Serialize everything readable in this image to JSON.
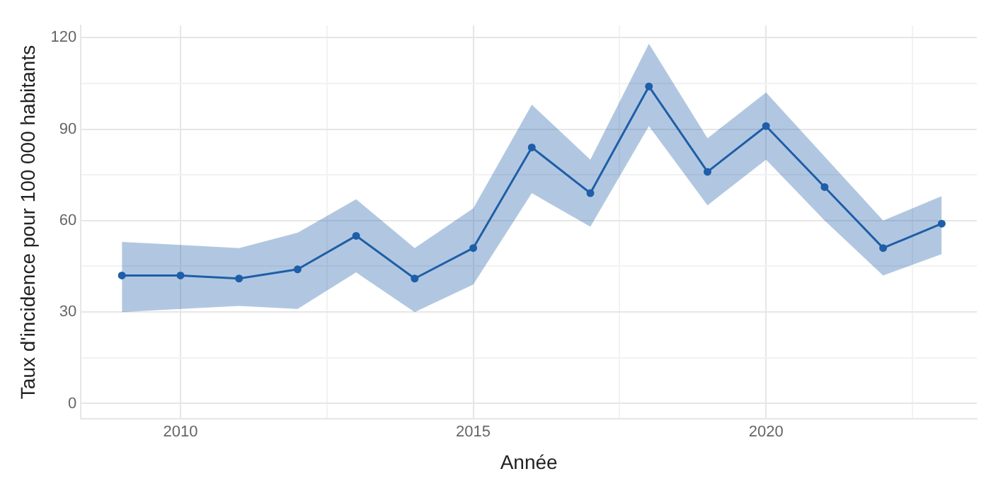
{
  "chart_data": {
    "type": "line",
    "xlabel": "Année",
    "ylabel": "Taux d'incidence pour 100 000 habitants",
    "x": [
      2009,
      2010,
      2011,
      2012,
      2013,
      2014,
      2015,
      2016,
      2017,
      2018,
      2019,
      2020,
      2021,
      2022,
      2023
    ],
    "series": [
      {
        "color": "#1f5fa8",
        "values": [
          42,
          42,
          41,
          44,
          55,
          41,
          51,
          84,
          69,
          104,
          76,
          91,
          71,
          51,
          59
        ],
        "lower": [
          30,
          31,
          32,
          31,
          43,
          30,
          39,
          69,
          58,
          91,
          65,
          80,
          60,
          42,
          49
        ],
        "upper": [
          53,
          52,
          51,
          56,
          67,
          51,
          64,
          98,
          80,
          118,
          87,
          102,
          81,
          60,
          68
        ]
      }
    ],
    "xlim": [
      2008.3,
      2023.6
    ],
    "xticks": [
      2010,
      {
        "value": 2012.5,
        "label": null
      },
      2015,
      {
        "value": 2017.5,
        "label": null
      },
      2020,
      {
        "value": 2022.5,
        "label": null
      }
    ],
    "ylim": [
      -5,
      124
    ],
    "yticks": [
      0,
      {
        "value": 15,
        "label": null
      },
      30,
      {
        "value": 45,
        "label": null
      },
      60,
      {
        "value": 75,
        "label": null
      },
      90,
      {
        "value": 105,
        "label": null
      },
      120
    ],
    "grid": true,
    "marker": "circle",
    "line_style": "solid",
    "legend": false
  }
}
